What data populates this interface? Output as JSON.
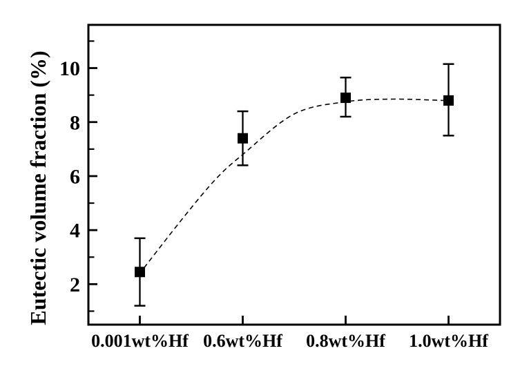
{
  "figure": {
    "background_color": "#ffffff",
    "foreground_color": "#000000"
  },
  "chart_data": {
    "type": "scatter",
    "title": "",
    "xlabel": "",
    "ylabel": "Eutectic volume fraction (%)",
    "categories": [
      "0.001wt%Hf",
      "0.6wt%Hf",
      "0.8wt%Hf",
      "1.0wt%Hf"
    ],
    "ylim": [
      0.5,
      11.6
    ],
    "yticks": [
      2,
      4,
      6,
      8,
      10
    ],
    "yticks_minor": [
      1,
      3,
      5,
      7,
      9,
      11
    ],
    "grid": false,
    "legend": false,
    "marker": "filled-square",
    "series": [
      {
        "name": "Eutectic volume fraction",
        "color": "#000000",
        "points": [
          {
            "category": "0.001wt%Hf",
            "value": 2.45,
            "error_plus": 1.25,
            "error_minus": 1.25
          },
          {
            "category": "0.6wt%Hf",
            "value": 7.4,
            "error_plus": 1.0,
            "error_minus": 1.0
          },
          {
            "category": "0.8wt%Hf",
            "value": 8.9,
            "error_plus": 0.75,
            "error_minus": 0.7
          },
          {
            "category": "1.0wt%Hf",
            "value": 8.8,
            "error_plus": 1.35,
            "error_minus": 1.3
          }
        ]
      }
    ],
    "trend_line": {
      "style": "dashed",
      "color": "#000000",
      "points_xy": [
        [
          0.04,
          2.6
        ],
        [
          0.43,
          4.5
        ],
        [
          0.74,
          5.9
        ],
        [
          1.0,
          6.8
        ],
        [
          1.5,
          8.3
        ],
        [
          2.0,
          8.75
        ],
        [
          2.45,
          8.85
        ],
        [
          2.97,
          8.8
        ]
      ]
    }
  }
}
